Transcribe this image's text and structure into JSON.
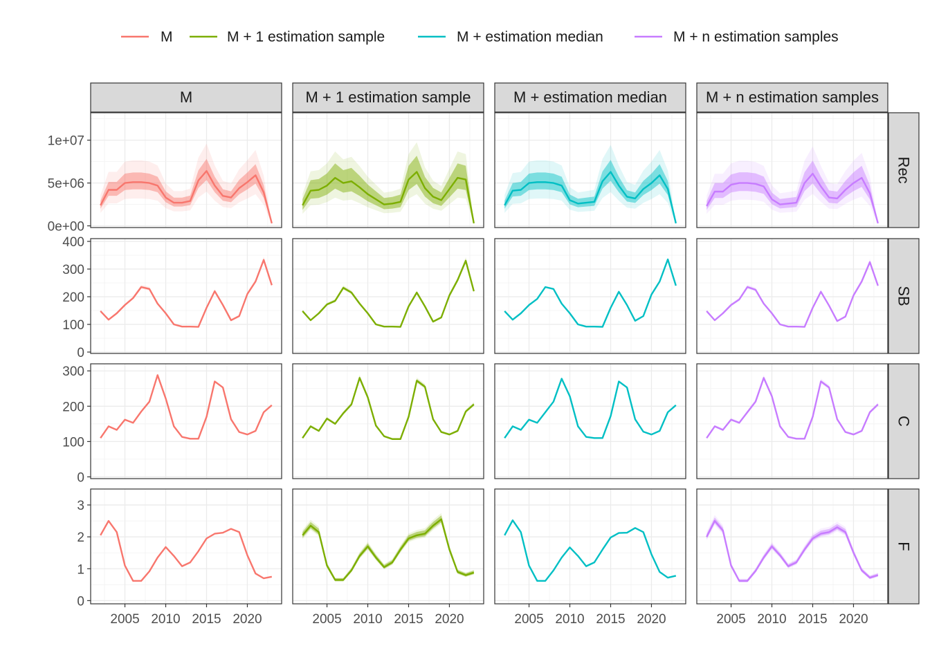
{
  "chart_data": {
    "type": "line",
    "layout": "facet grid: columns = model variant, rows = quantity; shaded uncertainty bands (inner ~50%, outer ~95%)",
    "legend": {
      "position": "top",
      "entries": [
        {
          "name": "M",
          "color": "#F8766D"
        },
        {
          "name": "M + 1 estimation sample",
          "color": "#7CAE00"
        },
        {
          "name": "M + estimation median",
          "color": "#00BFC4"
        },
        {
          "name": "M + n estimation samples",
          "color": "#C77CFF"
        }
      ]
    },
    "columns": [
      "M",
      "M + 1 estimation sample",
      "M + estimation median",
      "M + n estimation samples"
    ],
    "x": [
      2002,
      2003,
      2004,
      2005,
      2006,
      2007,
      2008,
      2009,
      2010,
      2011,
      2012,
      2013,
      2014,
      2015,
      2016,
      2017,
      2018,
      2019,
      2020,
      2021,
      2022,
      2023
    ],
    "xaxis": {
      "ticks": [
        2005,
        2010,
        2015,
        2020
      ],
      "tick_labels": [
        "2005",
        "2010",
        "2015",
        "2020"
      ],
      "range": [
        2000.8,
        2024.2
      ]
    },
    "grid": true,
    "rows": [
      {
        "name": "Rec",
        "ylim": [
          -200000,
          13200000
        ],
        "yticks": [
          0,
          5000000,
          10000000
        ],
        "ytick_labels": [
          "0e+00",
          "5e+06",
          "1e+07"
        ],
        "series": [
          {
            "values": [
              2400000,
              4200000,
              4200000,
              5000000,
              5100000,
              5100000,
              5000000,
              4700000,
              3300000,
              2700000,
              2700000,
              2900000,
              5300000,
              6400000,
              4700000,
              3500000,
              3300000,
              4400000,
              5100000,
              5900000,
              3900000,
              300000
            ]
          },
          {
            "values": [
              2400000,
              4100000,
              4200000,
              4700000,
              5600000,
              5000000,
              5200000,
              4500000,
              3700000,
              3100000,
              2500000,
              2600000,
              2800000,
              5400000,
              6300000,
              4400000,
              3400000,
              3000000,
              4300000,
              5600000,
              5400000,
              300000
            ]
          },
          {
            "values": [
              2400000,
              4100000,
              4200000,
              5000000,
              5100000,
              5100000,
              5000000,
              4700000,
              3000000,
              2600000,
              2700000,
              2800000,
              5200000,
              6300000,
              4700000,
              3400000,
              3200000,
              4300000,
              5000000,
              5900000,
              4300000,
              300000
            ]
          },
          {
            "values": [
              2300000,
              4000000,
              4000000,
              4800000,
              5000000,
              5000000,
              4900000,
              4600000,
              3100000,
              2500000,
              2600000,
              2700000,
              5000000,
              6100000,
              4600000,
              3300000,
              3200000,
              4200000,
              5000000,
              5600000,
              3800000,
              300000
            ]
          }
        ]
      },
      {
        "name": "SB",
        "ylim": [
          -5,
          410
        ],
        "yticks": [
          0,
          100,
          200,
          300,
          400
        ],
        "ytick_labels": [
          "0",
          "100",
          "200",
          "300",
          "400"
        ],
        "series": [
          {
            "values": [
              148,
              117,
              140,
              170,
              195,
              235,
              228,
              175,
              140,
              100,
              92,
              92,
              91,
              160,
              220,
              170,
              115,
              130,
              210,
              255,
              333,
              242
            ]
          },
          {
            "values": [
              148,
              115,
              140,
              172,
              185,
              232,
              215,
              175,
              140,
              100,
              92,
              92,
              91,
              165,
              215,
              165,
              110,
              125,
              205,
              260,
              330,
              220
            ]
          },
          {
            "values": [
              148,
              117,
              140,
              170,
              192,
              235,
              228,
              175,
              140,
              100,
              92,
              92,
              91,
              160,
              218,
              170,
              113,
              130,
              208,
              255,
              335,
              240
            ]
          },
          {
            "values": [
              148,
              115,
              140,
              170,
              190,
              235,
              225,
              175,
              140,
              100,
              92,
              92,
              91,
              160,
              218,
              168,
              112,
              128,
              205,
              255,
              325,
              240
            ]
          }
        ]
      },
      {
        "name": "C",
        "ylim": [
          -5,
          320
        ],
        "yticks": [
          0,
          100,
          200,
          300
        ],
        "ytick_labels": [
          "0",
          "100",
          "200",
          "300"
        ],
        "series": [
          {
            "values": [
              110,
              143,
              133,
              162,
              153,
              185,
              213,
              288,
              222,
              143,
              113,
              108,
              108,
              170,
              270,
              253,
              163,
              127,
              120,
              130,
              183,
              203
            ]
          },
          {
            "values": [
              110,
              143,
              130,
              165,
              150,
              180,
              205,
              280,
              225,
              145,
              115,
              107,
              107,
              170,
              272,
              255,
              163,
              127,
              120,
              130,
              185,
              205
            ]
          },
          {
            "values": [
              110,
              143,
              133,
              162,
              153,
              183,
              213,
              278,
              228,
              143,
              113,
              110,
              110,
              172,
              270,
              253,
              163,
              128,
              120,
              130,
              183,
              203
            ]
          },
          {
            "values": [
              110,
              143,
              133,
              162,
              153,
              183,
              213,
              280,
              228,
              143,
              113,
              108,
              108,
              170,
              270,
              253,
              163,
              127,
              120,
              130,
              183,
              205
            ]
          }
        ]
      },
      {
        "name": "F",
        "ylim": [
          -0.1,
          3.5
        ],
        "yticks": [
          0,
          1,
          2,
          3
        ],
        "ytick_labels": [
          "0",
          "1",
          "2",
          "3"
        ],
        "series": [
          {
            "values": [
              2.05,
              2.5,
              2.15,
              1.1,
              0.62,
              0.62,
              0.92,
              1.35,
              1.68,
              1.4,
              1.08,
              1.2,
              1.55,
              1.95,
              2.1,
              2.13,
              2.25,
              2.15,
              1.42,
              0.85,
              0.7,
              0.75
            ]
          },
          {
            "values": [
              2.05,
              2.35,
              2.15,
              1.1,
              0.65,
              0.65,
              0.95,
              1.4,
              1.7,
              1.35,
              1.05,
              1.2,
              1.6,
              1.95,
              2.05,
              2.1,
              2.35,
              2.55,
              1.6,
              0.9,
              0.8,
              0.88
            ]
          },
          {
            "values": [
              2.05,
              2.52,
              2.15,
              1.1,
              0.62,
              0.62,
              0.95,
              1.35,
              1.67,
              1.4,
              1.08,
              1.2,
              1.6,
              1.98,
              2.12,
              2.13,
              2.28,
              2.15,
              1.45,
              0.9,
              0.72,
              0.78
            ]
          },
          {
            "values": [
              2.0,
              2.5,
              2.2,
              1.1,
              0.62,
              0.62,
              0.93,
              1.35,
              1.7,
              1.42,
              1.08,
              1.2,
              1.6,
              1.95,
              2.1,
              2.15,
              2.3,
              2.15,
              1.5,
              0.95,
              0.72,
              0.8
            ]
          }
        ]
      }
    ],
    "bands": {
      "series_relative": [
        {
          "inner": 0.22,
          "outer": 0.5
        },
        {
          "inner": 0.3,
          "outer": 0.55
        },
        {
          "inner": 0.22,
          "outer": 0.5
        },
        {
          "inner": 0.25,
          "outer": 0.52
        }
      ],
      "row_scale": {
        "Rec": 1.0,
        "SB": 0.07,
        "C": 0.06,
        "F": 0.12
      },
      "no_band": [
        [
          1,
          2
        ],
        [
          2,
          0
        ],
        [
          2,
          2
        ],
        [
          3,
          0
        ],
        [
          3,
          2
        ]
      ]
    }
  }
}
